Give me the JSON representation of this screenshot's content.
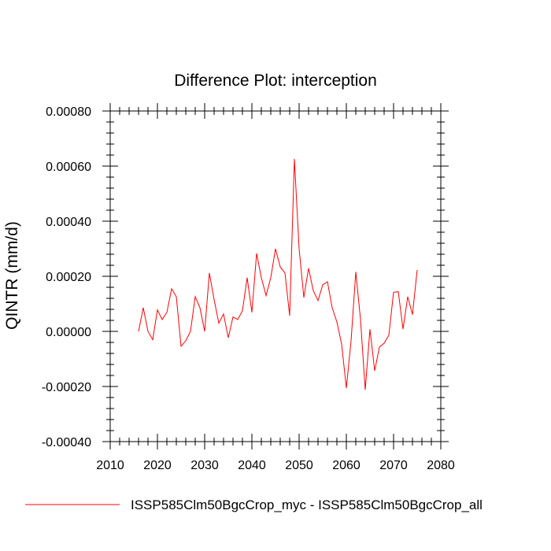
{
  "chart_data": {
    "type": "line",
    "title": "Difference Plot: interception",
    "xlabel": "",
    "ylabel": "QINTR  (mm/d)",
    "xlim": [
      2010,
      2080
    ],
    "ylim": [
      -0.0004,
      0.0008
    ],
    "xticks": [
      2010,
      2020,
      2030,
      2040,
      2050,
      2060,
      2070,
      2080
    ],
    "xtick_labels": [
      "2010",
      "2020",
      "2030",
      "2040",
      "2050",
      "2060",
      "2070",
      "2080"
    ],
    "yticks": [
      -0.0004,
      -0.0002,
      0.0,
      0.0002,
      0.0004,
      0.0006,
      0.0008
    ],
    "ytick_labels": [
      "-0.00040",
      "-0.00020",
      "0.00000",
      "0.00020",
      "0.00040",
      "0.00060",
      "0.00080"
    ],
    "legend_position": "bottom",
    "series": [
      {
        "name": "ISSP585Clm50BgcCrop_myc - ISSP585Clm50BgcCrop_all",
        "color": "#ff0000",
        "x": [
          2016,
          2017,
          2018,
          2019,
          2020,
          2021,
          2022,
          2023,
          2024,
          2025,
          2026,
          2027,
          2028,
          2029,
          2030,
          2031,
          2032,
          2033,
          2034,
          2035,
          2036,
          2037,
          2038,
          2039,
          2040,
          2041,
          2042,
          2043,
          2044,
          2045,
          2046,
          2047,
          2048,
          2049,
          2050,
          2051,
          2052,
          2053,
          2054,
          2055,
          2056,
          2057,
          2058,
          2059,
          2060,
          2061,
          2062,
          2063,
          2064,
          2065,
          2066,
          2067,
          2068,
          2069,
          2070,
          2071,
          2072,
          2073,
          2074,
          2075
        ],
        "y": [
          0.0,
          8.6e-05,
          0.0,
          -3e-05,
          7.8e-05,
          4.3e-05,
          6.9e-05,
          0.000155,
          0.000126,
          -5.4e-05,
          -3.4e-05,
          0.0,
          0.000126,
          8.6e-05,
          0.0,
          0.000212,
          0.000115,
          3e-05,
          6.3e-05,
          -2.3e-05,
          5.2e-05,
          4.3e-05,
          7.5e-05,
          0.000195,
          6.9e-05,
          0.000283,
          0.000195,
          0.00013,
          0.000195,
          0.0003,
          0.000234,
          0.000212,
          5.7e-05,
          0.000626,
          0.0003,
          0.000123,
          0.000229,
          0.000148,
          0.000112,
          0.000169,
          0.00018,
          8.6e-05,
          3.4e-05,
          -4.6e-05,
          -0.000206,
          -3.4e-05,
          0.000216,
          4.3e-05,
          -0.000212,
          8e-06,
          -0.000143,
          -5.7e-05,
          -4.3e-05,
          -1.4e-05,
          0.000142,
          0.000144,
          8e-06,
          0.000126,
          6.1e-05,
          0.000223
        ]
      }
    ]
  }
}
